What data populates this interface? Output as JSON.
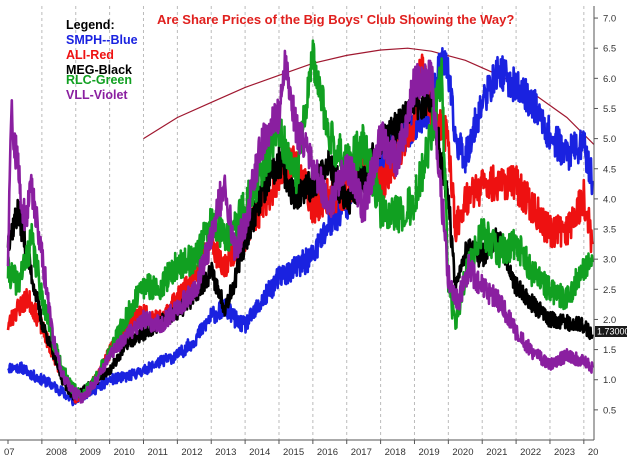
{
  "chart_data": {
    "type": "line",
    "title": "Are Share Prices of the Big Boys' Club Showing the Way?",
    "legend": {
      "heading": "Legend:",
      "placement": "top-left",
      "entries": [
        {
          "label": "SMPH--Blue",
          "color": "#1a22e0"
        },
        {
          "label": "ALI-Red",
          "color": "#ee1111"
        },
        {
          "label": "MEG-Black",
          "color": "#000000"
        },
        {
          "label": "RLC-Green",
          "color": "#11a021"
        },
        {
          "label": "VLL-Violet",
          "color": "#8a1fa0"
        }
      ]
    },
    "x_ticks": [
      "07",
      "2008",
      "2009",
      "2010",
      "2011",
      "2012",
      "2013",
      "2014",
      "2015",
      "2016",
      "2017",
      "2018",
      "2019",
      "2020",
      "2021",
      "2022",
      "2023",
      "20"
    ],
    "y_ticks": [
      "0.5",
      "1.0",
      "1.5",
      "2.0",
      "2.5",
      "3.0",
      "3.5",
      "4.0",
      "4.5",
      "5.0",
      "5.5",
      "6.0",
      "6.5",
      "7.0"
    ],
    "ylim": [
      0.0,
      7.2
    ],
    "xlim": [
      2007.0,
      2024.3
    ],
    "y_axis_side": "right",
    "grid": "vertical dashed",
    "last_value_label": "1.73000",
    "series": [
      {
        "name": "SMPH--Blue",
        "color": "#1a22e0",
        "x": [
          2007.0,
          2007.4,
          2007.8,
          2008.2,
          2008.6,
          2008.9,
          2009.2,
          2009.6,
          2010.0,
          2010.5,
          2011.0,
          2011.5,
          2012.0,
          2012.5,
          2013.0,
          2013.4,
          2013.8,
          2014.0,
          2014.5,
          2015.0,
          2015.5,
          2016.0,
          2016.5,
          2017.0,
          2017.3,
          2017.6,
          2018.0,
          2018.3,
          2018.6,
          2019.0,
          2019.4,
          2019.8,
          2020.0,
          2020.2,
          2020.5,
          2021.0,
          2021.5,
          2022.0,
          2022.5,
          2023.0,
          2023.5,
          2024.0,
          2024.25
        ],
        "y": [
          1.2,
          1.2,
          1.05,
          0.95,
          0.8,
          0.65,
          0.75,
          0.85,
          1.0,
          1.05,
          1.15,
          1.3,
          1.4,
          1.65,
          2.05,
          2.2,
          1.95,
          1.9,
          2.3,
          2.7,
          2.85,
          3.05,
          3.6,
          3.9,
          4.6,
          4.2,
          4.65,
          4.8,
          5.0,
          5.2,
          5.45,
          6.3,
          6.1,
          5.0,
          4.7,
          5.6,
          6.15,
          5.85,
          5.6,
          5.05,
          4.75,
          4.9,
          4.3
        ]
      },
      {
        "name": "ALI-Red",
        "color": "#ee1111",
        "x": [
          2007.0,
          2007.3,
          2007.6,
          2007.9,
          2008.2,
          2008.5,
          2008.8,
          2009.0,
          2009.3,
          2009.6,
          2010.0,
          2010.5,
          2011.0,
          2011.5,
          2012.0,
          2012.5,
          2013.0,
          2013.4,
          2013.7,
          2014.0,
          2014.5,
          2015.0,
          2015.5,
          2016.0,
          2016.5,
          2017.0,
          2017.5,
          2018.0,
          2018.5,
          2019.0,
          2019.2,
          2019.5,
          2020.0,
          2020.2,
          2020.5,
          2021.0,
          2021.5,
          2022.0,
          2022.5,
          2023.0,
          2023.5,
          2024.0,
          2024.25
        ],
        "y": [
          1.9,
          2.2,
          2.35,
          2.0,
          1.6,
          1.2,
          0.9,
          0.7,
          0.8,
          1.05,
          1.45,
          1.95,
          2.1,
          2.0,
          2.35,
          2.8,
          3.25,
          2.9,
          3.2,
          3.35,
          3.9,
          4.4,
          4.6,
          3.9,
          4.05,
          4.15,
          4.6,
          4.2,
          4.75,
          5.3,
          6.3,
          5.4,
          5.0,
          3.5,
          4.0,
          4.2,
          4.3,
          4.25,
          3.85,
          3.45,
          3.5,
          4.05,
          3.25
        ]
      },
      {
        "name": "MEG-Black",
        "color": "#000000",
        "x": [
          2007.0,
          2007.3,
          2007.6,
          2008.0,
          2008.3,
          2008.6,
          2008.9,
          2009.2,
          2009.5,
          2010.0,
          2010.5,
          2011.0,
          2011.5,
          2012.0,
          2012.5,
          2013.0,
          2013.4,
          2013.7,
          2014.0,
          2014.5,
          2015.0,
          2015.5,
          2016.0,
          2016.5,
          2017.0,
          2017.5,
          2018.0,
          2018.5,
          2019.0,
          2019.5,
          2020.0,
          2020.2,
          2020.5,
          2021.0,
          2021.5,
          2022.0,
          2022.5,
          2023.0,
          2023.5,
          2024.0,
          2024.25
        ],
        "y": [
          3.3,
          3.8,
          3.0,
          1.95,
          1.5,
          1.0,
          0.75,
          0.8,
          0.95,
          1.15,
          1.6,
          1.75,
          1.95,
          2.1,
          2.4,
          2.8,
          2.2,
          2.65,
          3.3,
          4.1,
          4.6,
          4.0,
          4.25,
          4.6,
          3.9,
          4.35,
          4.95,
          5.2,
          5.55,
          5.6,
          4.0,
          2.6,
          3.15,
          3.05,
          3.35,
          2.55,
          2.25,
          2.0,
          1.95,
          1.9,
          1.75
        ]
      },
      {
        "name": "RLC-Green",
        "color": "#11a021",
        "x": [
          2007.0,
          2007.3,
          2007.7,
          2008.0,
          2008.3,
          2008.6,
          2008.9,
          2009.2,
          2009.5,
          2010.0,
          2010.5,
          2011.0,
          2011.5,
          2012.0,
          2012.5,
          2013.0,
          2013.4,
          2013.7,
          2014.0,
          2014.5,
          2015.0,
          2015.5,
          2016.0,
          2016.3,
          2016.6,
          2017.0,
          2017.5,
          2018.0,
          2018.5,
          2019.0,
          2019.5,
          2019.8,
          2020.0,
          2020.2,
          2020.5,
          2021.0,
          2021.5,
          2022.0,
          2022.5,
          2023.0,
          2023.5,
          2024.0,
          2024.25
        ],
        "y": [
          2.8,
          2.6,
          3.3,
          2.4,
          1.7,
          1.2,
          0.85,
          0.75,
          0.95,
          1.45,
          2.05,
          2.55,
          2.55,
          2.9,
          3.0,
          3.6,
          3.35,
          3.55,
          3.85,
          4.5,
          5.15,
          4.3,
          6.3,
          5.55,
          4.9,
          4.6,
          4.9,
          3.85,
          3.75,
          3.95,
          5.05,
          6.1,
          2.6,
          1.9,
          2.75,
          3.45,
          3.1,
          3.3,
          2.75,
          2.5,
          2.35,
          2.85,
          2.95
        ]
      },
      {
        "name": "VLL-Violet",
        "color": "#8a1fa0",
        "x": [
          2007.0,
          2007.1,
          2007.25,
          2007.5,
          2007.7,
          2008.0,
          2008.3,
          2008.6,
          2008.9,
          2009.2,
          2009.5,
          2010.0,
          2010.5,
          2011.0,
          2011.5,
          2012.0,
          2012.5,
          2013.0,
          2013.4,
          2013.7,
          2014.0,
          2014.5,
          2015.0,
          2015.2,
          2015.5,
          2016.0,
          2016.5,
          2017.0,
          2017.5,
          2018.0,
          2018.5,
          2019.0,
          2019.5,
          2020.0,
          2020.3,
          2020.6,
          2021.0,
          2021.5,
          2022.0,
          2022.5,
          2023.0,
          2023.5,
          2024.0,
          2024.25
        ],
        "y": [
          3.0,
          5.4,
          4.7,
          3.6,
          4.2,
          3.1,
          1.8,
          1.1,
          0.8,
          0.7,
          0.9,
          1.4,
          1.75,
          2.0,
          1.9,
          2.2,
          2.45,
          3.35,
          4.3,
          3.15,
          3.6,
          4.95,
          5.4,
          6.35,
          5.2,
          4.5,
          3.95,
          4.6,
          3.85,
          5.0,
          4.65,
          5.9,
          6.05,
          2.7,
          2.3,
          2.85,
          2.55,
          2.3,
          1.8,
          1.45,
          1.25,
          1.4,
          1.3,
          1.2
        ]
      }
    ],
    "trend_curve": {
      "color": "#a01830",
      "x": [
        2011.0,
        2012.0,
        2013.0,
        2014.0,
        2015.0,
        2016.0,
        2017.0,
        2018.0,
        2018.8,
        2019.5,
        2020.5,
        2021.5,
        2022.5,
        2023.5,
        2024.3
      ],
      "y": [
        5.0,
        5.35,
        5.6,
        5.85,
        6.05,
        6.25,
        6.38,
        6.47,
        6.5,
        6.45,
        6.3,
        6.05,
        5.75,
        5.35,
        4.9
      ]
    }
  }
}
